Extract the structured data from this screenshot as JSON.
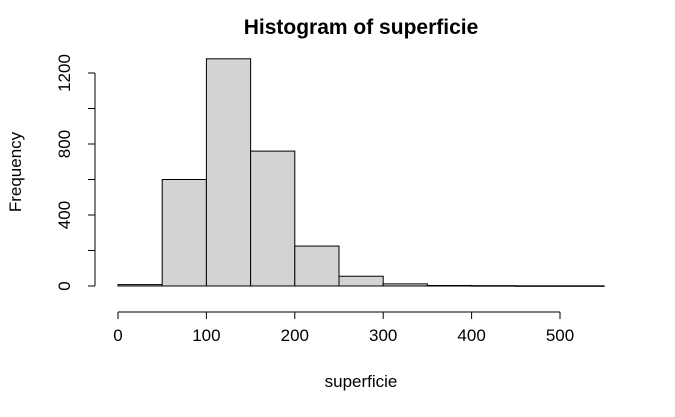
{
  "chart_data": {
    "type": "bar",
    "title": "Histogram of superficie",
    "xlabel": "superficie",
    "ylabel": "Frequency",
    "bins": [
      {
        "from": 0,
        "to": 50,
        "count": 8
      },
      {
        "from": 50,
        "to": 100,
        "count": 600
      },
      {
        "from": 100,
        "to": 150,
        "count": 1280
      },
      {
        "from": 150,
        "to": 200,
        "count": 760
      },
      {
        "from": 200,
        "to": 250,
        "count": 225
      },
      {
        "from": 250,
        "to": 300,
        "count": 55
      },
      {
        "from": 300,
        "to": 350,
        "count": 12
      },
      {
        "from": 350,
        "to": 400,
        "count": 3
      },
      {
        "from": 400,
        "to": 450,
        "count": 2
      },
      {
        "from": 450,
        "to": 500,
        "count": 1
      },
      {
        "from": 500,
        "to": 550,
        "count": 1
      }
    ],
    "x_ticks": [
      0,
      100,
      200,
      300,
      400,
      500
    ],
    "y_ticks": [
      0,
      400,
      800,
      1200
    ],
    "y_minor_ticks": [
      200,
      600,
      1000
    ],
    "xlim": [
      0,
      550
    ],
    "ylim": [
      0,
      1280
    ],
    "colors": {
      "bar_fill": "#d3d3d3",
      "bar_stroke": "#000000"
    }
  }
}
